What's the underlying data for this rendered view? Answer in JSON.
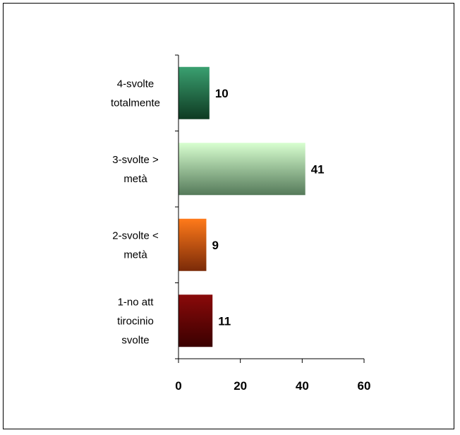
{
  "chart_data": {
    "type": "bar",
    "orientation": "horizontal",
    "categories": [
      [
        "1-no att",
        "tirocinio",
        "svolte"
      ],
      [
        "2-svolte  <",
        "metà"
      ],
      [
        "3-svolte  >",
        "metà"
      ],
      [
        "4-svolte",
        "totalmente"
      ]
    ],
    "values": [
      11,
      9,
      41,
      10
    ],
    "data_labels": [
      "11",
      "9",
      "41",
      "10"
    ],
    "bar_colors": [
      [
        "#8a0a0a",
        "#3a0000"
      ],
      [
        "#ff7a1a",
        "#7a2a08"
      ],
      [
        "#d8ffd0",
        "#557a5a"
      ],
      [
        "#3aa070",
        "#0e3a22"
      ]
    ],
    "xticks": [
      "0",
      "20",
      "40",
      "60"
    ],
    "xlim": [
      0,
      60
    ],
    "title": "",
    "xlabel": "",
    "ylabel": "",
    "grid": false,
    "legend": "none"
  }
}
